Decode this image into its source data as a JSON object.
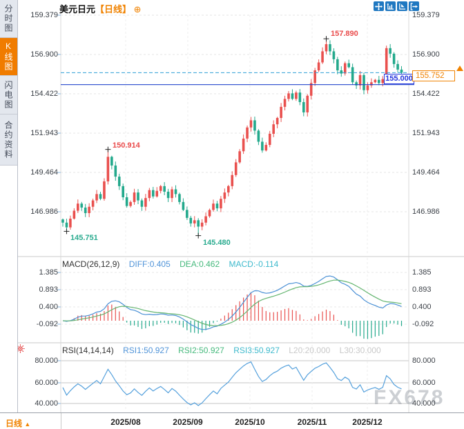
{
  "header": {
    "title": "美元日元",
    "timeframe": "【日线】",
    "plus": "⊕"
  },
  "sidebar": {
    "items": [
      {
        "label": "分时图",
        "selected": false
      },
      {
        "label": "K线图",
        "selected": true
      },
      {
        "label": "闪电图",
        "selected": false
      },
      {
        "label": "合约资料",
        "selected": false
      }
    ]
  },
  "toolbar": {
    "icons": [
      "move-icon",
      "axis-zoom-icon",
      "axis-flag-icon",
      "exit-right-icon"
    ]
  },
  "price_axis": {
    "labels": [
      "159.379",
      "156.900",
      "154.422",
      "151.943",
      "149.464",
      "146.986"
    ]
  },
  "macd_axis": {
    "labels": [
      "1.385",
      "0.893",
      "0.400",
      "-0.092"
    ]
  },
  "rsi_axis": {
    "labels": [
      "80.000",
      "60.000",
      "40.000"
    ]
  },
  "x_axis": {
    "labels": [
      "2025/08",
      "2025/09",
      "2025/10",
      "2025/11",
      "2025/12"
    ]
  },
  "annotations": {
    "high1": "150.914",
    "low1": "145.751",
    "low2": "145.480",
    "high2": "157.890",
    "price_line": "155.000",
    "current_price": "155.752"
  },
  "indicators": {
    "macd": {
      "name": "MACD(26,12,9)",
      "diff": "DIFF:0.405",
      "dea": "DEA:0.462",
      "macd": "MACD:-0.114"
    },
    "rsi": {
      "name": "RSI(14,14,14)",
      "rsi1": "RSI1:50.927",
      "rsi2": "RSI2:50.927",
      "rsi3": "RSI3:50.927",
      "l20": "L20:20.000",
      "l30": "L30:30.000"
    }
  },
  "footer": {
    "timeframe": "日线",
    "arrow": "▲"
  },
  "watermark": "FX678",
  "colors": {
    "up": "#e9504e",
    "down": "#23a98c",
    "accent_orange": "#f08200",
    "line_blue": "#4a90d5",
    "line_green": "#63b56f",
    "rsi_blue": "#54a0dc",
    "hline_solid": "#2244cc",
    "hline_dashed": "#2f9fd6",
    "toolbar_blue": "#1f78c1"
  },
  "chart_data": {
    "type": "candlestick",
    "symbol": "美元日元",
    "period": "日线",
    "x_tick_labels": [
      "2025/08",
      "2025/09",
      "2025/10",
      "2025/11",
      "2025/12"
    ],
    "price_ticks": [
      159.379,
      156.9,
      154.422,
      151.943,
      149.464,
      146.986
    ],
    "macd_ticks": [
      1.385,
      0.893,
      0.4,
      -0.092
    ],
    "rsi_ticks": [
      80.0,
      60.0,
      40.0
    ],
    "first_open": 146.5,
    "closes": [
      146.3,
      146.0,
      146.55,
      147.05,
      147.5,
      147.25,
      146.9,
      147.3,
      147.7,
      148.1,
      147.8,
      148.9,
      150.45,
      149.9,
      149.2,
      148.6,
      147.9,
      147.35,
      147.6,
      148.2,
      147.7,
      147.3,
      147.85,
      148.35,
      147.95,
      148.3,
      148.6,
      148.25,
      147.85,
      148.4,
      148.1,
      147.6,
      147.1,
      146.6,
      146.25,
      146.45,
      146.05,
      146.3,
      146.7,
      147.1,
      147.5,
      147.2,
      147.8,
      148.2,
      148.6,
      149.3,
      150.1,
      150.8,
      151.6,
      152.3,
      152.75,
      152.1,
      151.4,
      150.85,
      151.2,
      151.9,
      152.5,
      152.9,
      153.6,
      154.1,
      154.45,
      154.1,
      154.5,
      153.9,
      153.25,
      154.3,
      155.1,
      155.9,
      156.4,
      157.1,
      157.55,
      157.1,
      156.6,
      155.9,
      155.7,
      156.35,
      156.1,
      155.15,
      154.95,
      155.6,
      154.65,
      154.95,
      155.15,
      155.3,
      155.1,
      155.35,
      157.3,
      156.95,
      156.3,
      155.95,
      155.752
    ],
    "marked_points": [
      {
        "index": 1,
        "value": 145.751,
        "kind": "low",
        "label": "145.751"
      },
      {
        "index": 12,
        "value": 150.914,
        "kind": "high",
        "label": "150.914"
      },
      {
        "index": 36,
        "value": 145.48,
        "kind": "low",
        "label": "145.480"
      },
      {
        "index": 70,
        "value": 157.89,
        "kind": "high",
        "label": "157.890"
      }
    ],
    "hlines": [
      {
        "value": 155.752,
        "style": "dashed",
        "label": "155.752"
      },
      {
        "value": 155.0,
        "style": "solid",
        "label": "155.000"
      }
    ],
    "macd_values": {
      "params": [
        26,
        12,
        9
      ],
      "diff": 0.405,
      "dea": 0.462,
      "macd": -0.114
    },
    "rsi_values": {
      "params": [
        14,
        14,
        14
      ],
      "rsi1": 50.927,
      "rsi2": 50.927,
      "rsi3": 50.927,
      "l20": 20.0,
      "l30": 30.0
    }
  }
}
